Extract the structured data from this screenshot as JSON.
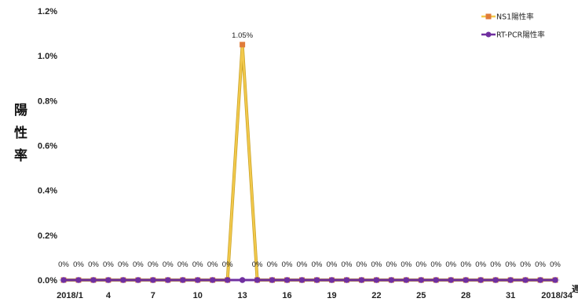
{
  "chart_data": {
    "type": "line",
    "ylabel": "陽性率",
    "ylabel_chars": [
      "陽",
      "性",
      "率"
    ],
    "xlabel": "週",
    "y_ticks": [
      "0.0%",
      "0.2%",
      "0.4%",
      "0.6%",
      "0.8%",
      "1.0%",
      "1.2%"
    ],
    "ylim": [
      0,
      1.2
    ],
    "x_tick_labels": [
      "2018/1",
      "4",
      "7",
      "10",
      "13",
      "16",
      "19",
      "22",
      "25",
      "28",
      "31",
      "2018/34"
    ],
    "x_tick_weeks": [
      1,
      4,
      7,
      10,
      13,
      16,
      19,
      22,
      25,
      28,
      31,
      34
    ],
    "x": [
      1,
      2,
      3,
      4,
      5,
      6,
      7,
      8,
      9,
      10,
      11,
      12,
      13,
      14,
      15,
      16,
      17,
      18,
      19,
      20,
      21,
      22,
      23,
      24,
      25,
      26,
      27,
      28,
      29,
      30,
      31,
      32,
      33,
      34
    ],
    "series": [
      {
        "name": "NS1陽性率",
        "color": "#f2c94c",
        "marker_color": "#e07b39",
        "values": [
          0,
          0,
          0,
          0,
          0,
          0,
          0,
          0,
          0,
          0,
          0,
          0,
          1.05,
          0,
          0,
          0,
          0,
          0,
          0,
          0,
          0,
          0,
          0,
          0,
          0,
          0,
          0,
          0,
          0,
          0,
          0,
          0,
          0,
          0
        ],
        "labels": [
          "0%",
          "0%",
          "0%",
          "0%",
          "0%",
          "0%",
          "0%",
          "0%",
          "0%",
          "0%",
          "0%",
          "0%",
          "1.05%",
          "0%",
          "0%",
          "0%",
          "0%",
          "0%",
          "0%",
          "0%",
          "0%",
          "0%",
          "0%",
          "0%",
          "0%",
          "0%",
          "0%",
          "0%",
          "0%",
          "0%",
          "0%",
          "0%",
          "0%",
          "0%"
        ]
      },
      {
        "name": "RT-PCR陽性率",
        "color": "#7030a0",
        "marker_color": "#7030a0",
        "values": [
          0,
          0,
          0,
          0,
          0,
          0,
          0,
          0,
          0,
          0,
          0,
          0,
          0,
          0,
          0,
          0,
          0,
          0,
          0,
          0,
          0,
          0,
          0,
          0,
          0,
          0,
          0,
          0,
          0,
          0,
          0,
          0,
          0,
          0
        ]
      }
    ],
    "legend_position": "top-right"
  }
}
